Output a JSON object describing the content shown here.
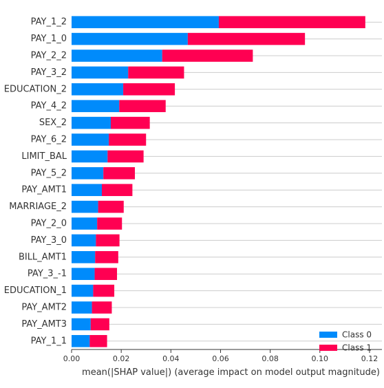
{
  "chart_data": {
    "type": "bar",
    "orientation": "horizontal",
    "stacked": true,
    "categories": [
      "PAY_1_2",
      "PAY_1_0",
      "PAY_2_2",
      "PAY_3_2",
      "EDUCATION_2",
      "PAY_4_2",
      "SEX_2",
      "PAY_6_2",
      "LIMIT_BAL",
      "PAY_5_2",
      "PAY_AMT1",
      "MARRIAGE_2",
      "PAY_2_0",
      "PAY_3_0",
      "BILL_AMT1",
      "PAY_3_-1",
      "EDUCATION_1",
      "PAY_AMT2",
      "PAY_AMT3",
      "PAY_1_1"
    ],
    "series": [
      {
        "name": "Class 0",
        "color": "#008bfb",
        "values": [
          0.0593,
          0.0468,
          0.0365,
          0.0228,
          0.0208,
          0.0192,
          0.0158,
          0.015,
          0.0145,
          0.0128,
          0.0122,
          0.0107,
          0.0103,
          0.0098,
          0.0095,
          0.0093,
          0.0087,
          0.0082,
          0.0077,
          0.0073
        ]
      },
      {
        "name": "Class 1",
        "color": "#ff0052",
        "values": [
          0.059,
          0.0472,
          0.0365,
          0.0225,
          0.0208,
          0.0187,
          0.0157,
          0.015,
          0.0145,
          0.0127,
          0.0123,
          0.0103,
          0.01,
          0.0095,
          0.0093,
          0.009,
          0.0085,
          0.008,
          0.0075,
          0.007
        ]
      }
    ],
    "x_ticks": [
      "0.00",
      "0.02",
      "0.04",
      "0.06",
      "0.08",
      "0.10",
      "0.12"
    ],
    "x_tick_values": [
      0,
      0.02,
      0.04,
      0.06,
      0.08,
      0.1,
      0.12
    ],
    "xlim": [
      0,
      0.125
    ],
    "xlabel": "mean(|SHAP value|) (average impact on model output magnitude)",
    "grid": "y",
    "legend_position": "bottom-right"
  }
}
